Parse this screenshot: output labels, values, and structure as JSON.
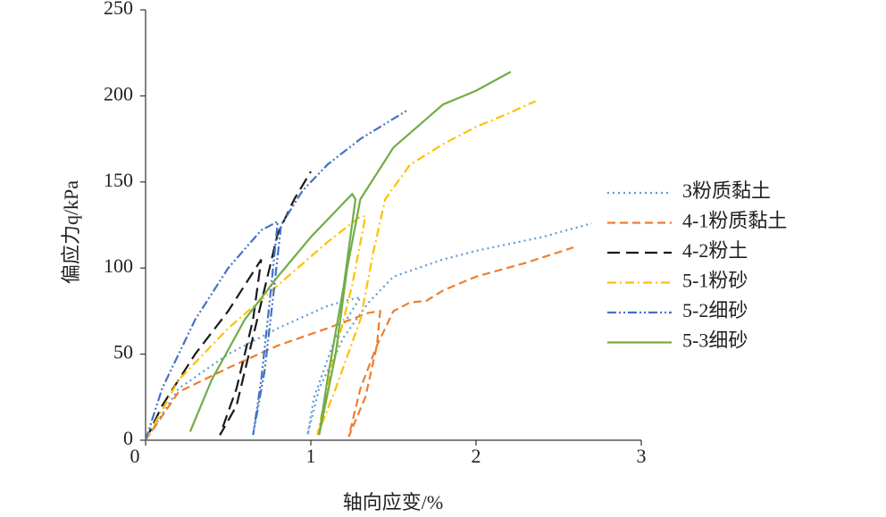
{
  "chart_data": {
    "type": "line",
    "x_label": "轴向应变/%",
    "y_label": "偏应力q/kPa",
    "xlim": [
      0,
      3
    ],
    "xticks": [
      0,
      1,
      2,
      3
    ],
    "ylim": [
      0,
      250
    ],
    "yticks": [
      0,
      50,
      100,
      150,
      200,
      250
    ],
    "grid": false,
    "legend": "right",
    "series": [
      {
        "name": "3粉质黏土",
        "color": "#5b9bd5",
        "style": "dotted",
        "x": [
          0,
          0.2,
          0.5,
          0.8,
          1.1,
          1.25,
          1.3,
          1.15,
          1.02,
          0.98,
          1.05,
          1.2,
          1.35,
          1.5,
          1.8,
          2.0,
          2.4,
          2.7
        ],
        "values": [
          0,
          30,
          50,
          65,
          78,
          82,
          83,
          60,
          25,
          3,
          30,
          60,
          80,
          95,
          105,
          110,
          118,
          126
        ]
      },
      {
        "name": "4-1粉质黏土",
        "color": "#ed7d31",
        "style": "dashed",
        "x": [
          0,
          0.2,
          0.5,
          0.8,
          1.1,
          1.35,
          1.42,
          1.4,
          1.33,
          1.23,
          1.3,
          1.4,
          1.5,
          1.6,
          1.7,
          1.8,
          2.0,
          2.3,
          2.59
        ],
        "values": [
          0,
          28,
          42,
          55,
          65,
          74,
          75,
          55,
          25,
          2,
          30,
          55,
          75,
          80,
          81,
          87,
          95,
          103,
          112
        ]
      },
      {
        "name": "4-2粉土",
        "color": "#1a1a1a",
        "style": "longdash",
        "x": [
          0,
          0.1,
          0.3,
          0.5,
          0.7,
          0.65,
          0.55,
          0.45,
          0.55,
          0.65,
          0.75,
          0.8,
          0.9,
          1.0
        ],
        "values": [
          0,
          20,
          50,
          75,
          105,
          70,
          30,
          3,
          20,
          60,
          100,
          120,
          140,
          156
        ]
      },
      {
        "name": "5-1粉砂",
        "color": "#ffc000",
        "style": "dashdot",
        "x": [
          0,
          0.2,
          0.5,
          0.8,
          1.1,
          1.3,
          1.33,
          1.25,
          1.12,
          1.04,
          1.15,
          1.3,
          1.38,
          1.45,
          1.6,
          1.8,
          2.0,
          2.2,
          2.36
        ],
        "values": [
          0,
          35,
          65,
          90,
          115,
          130,
          130,
          90,
          40,
          3,
          30,
          70,
          110,
          140,
          160,
          172,
          182,
          190,
          197
        ]
      },
      {
        "name": "5-2细砂",
        "color": "#4472c4",
        "style": "dashdotdot",
        "x": [
          0,
          0.1,
          0.3,
          0.5,
          0.7,
          0.8,
          0.75,
          0.7,
          0.65,
          0.72,
          0.78,
          0.82,
          0.95,
          1.1,
          1.3,
          1.59
        ],
        "values": [
          0,
          30,
          70,
          100,
          122,
          127,
          80,
          35,
          3,
          40,
          90,
          125,
          145,
          160,
          175,
          192
        ]
      },
      {
        "name": "5-3细砂",
        "color": "#70ad47",
        "style": "solid",
        "x": [
          0.27,
          0.4,
          0.6,
          0.8,
          1.0,
          1.2,
          1.25,
          1.27,
          1.2,
          1.1,
          1.05,
          1.15,
          1.22,
          1.3,
          1.5,
          1.8,
          2.0,
          2.21
        ],
        "values": [
          5,
          35,
          70,
          95,
          118,
          138,
          143,
          140,
          90,
          35,
          3,
          50,
          100,
          140,
          170,
          195,
          203,
          214
        ]
      }
    ]
  }
}
